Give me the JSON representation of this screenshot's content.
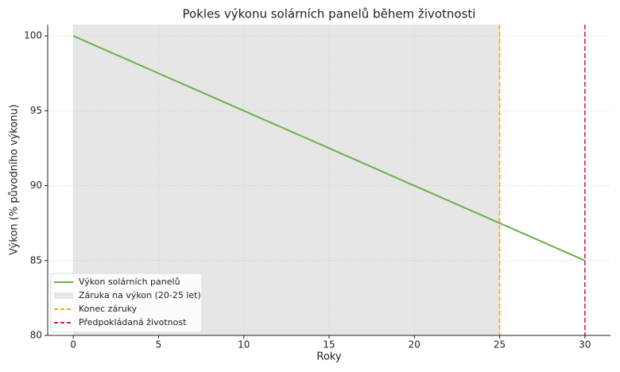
{
  "chart_data": {
    "type": "line",
    "title": "Pokles výkonu solárních panelů během životnosti",
    "x_label": "Roky",
    "y_label": "Výkon (% původního výkonu)",
    "x": [
      0,
      5,
      10,
      15,
      20,
      25,
      30
    ],
    "series": [
      {
        "name": "Výkon solárních panelů",
        "color": "#6ab04c",
        "values": [
          100,
          97.5,
          95,
          92.5,
          90,
          87.5,
          85
        ]
      }
    ],
    "spans": [
      {
        "name": "Záruka na výkon (20-25 let)",
        "from": 0,
        "to": 25,
        "color": "#e6e6e6"
      }
    ],
    "vlines": [
      {
        "name": "Konec záruky",
        "x": 25,
        "color": "#f5a623"
      },
      {
        "name": "Předpokládaná životnost",
        "x": 30,
        "color": "#d62728"
      }
    ],
    "xlim": [
      -1.5,
      31.5
    ],
    "xticks": [
      0,
      5,
      10,
      15,
      20,
      25,
      30
    ],
    "ylim": [
      80,
      100.75
    ],
    "yticks": [
      80,
      85,
      90,
      95,
      100
    ],
    "grid": true,
    "legend": "lower left"
  }
}
